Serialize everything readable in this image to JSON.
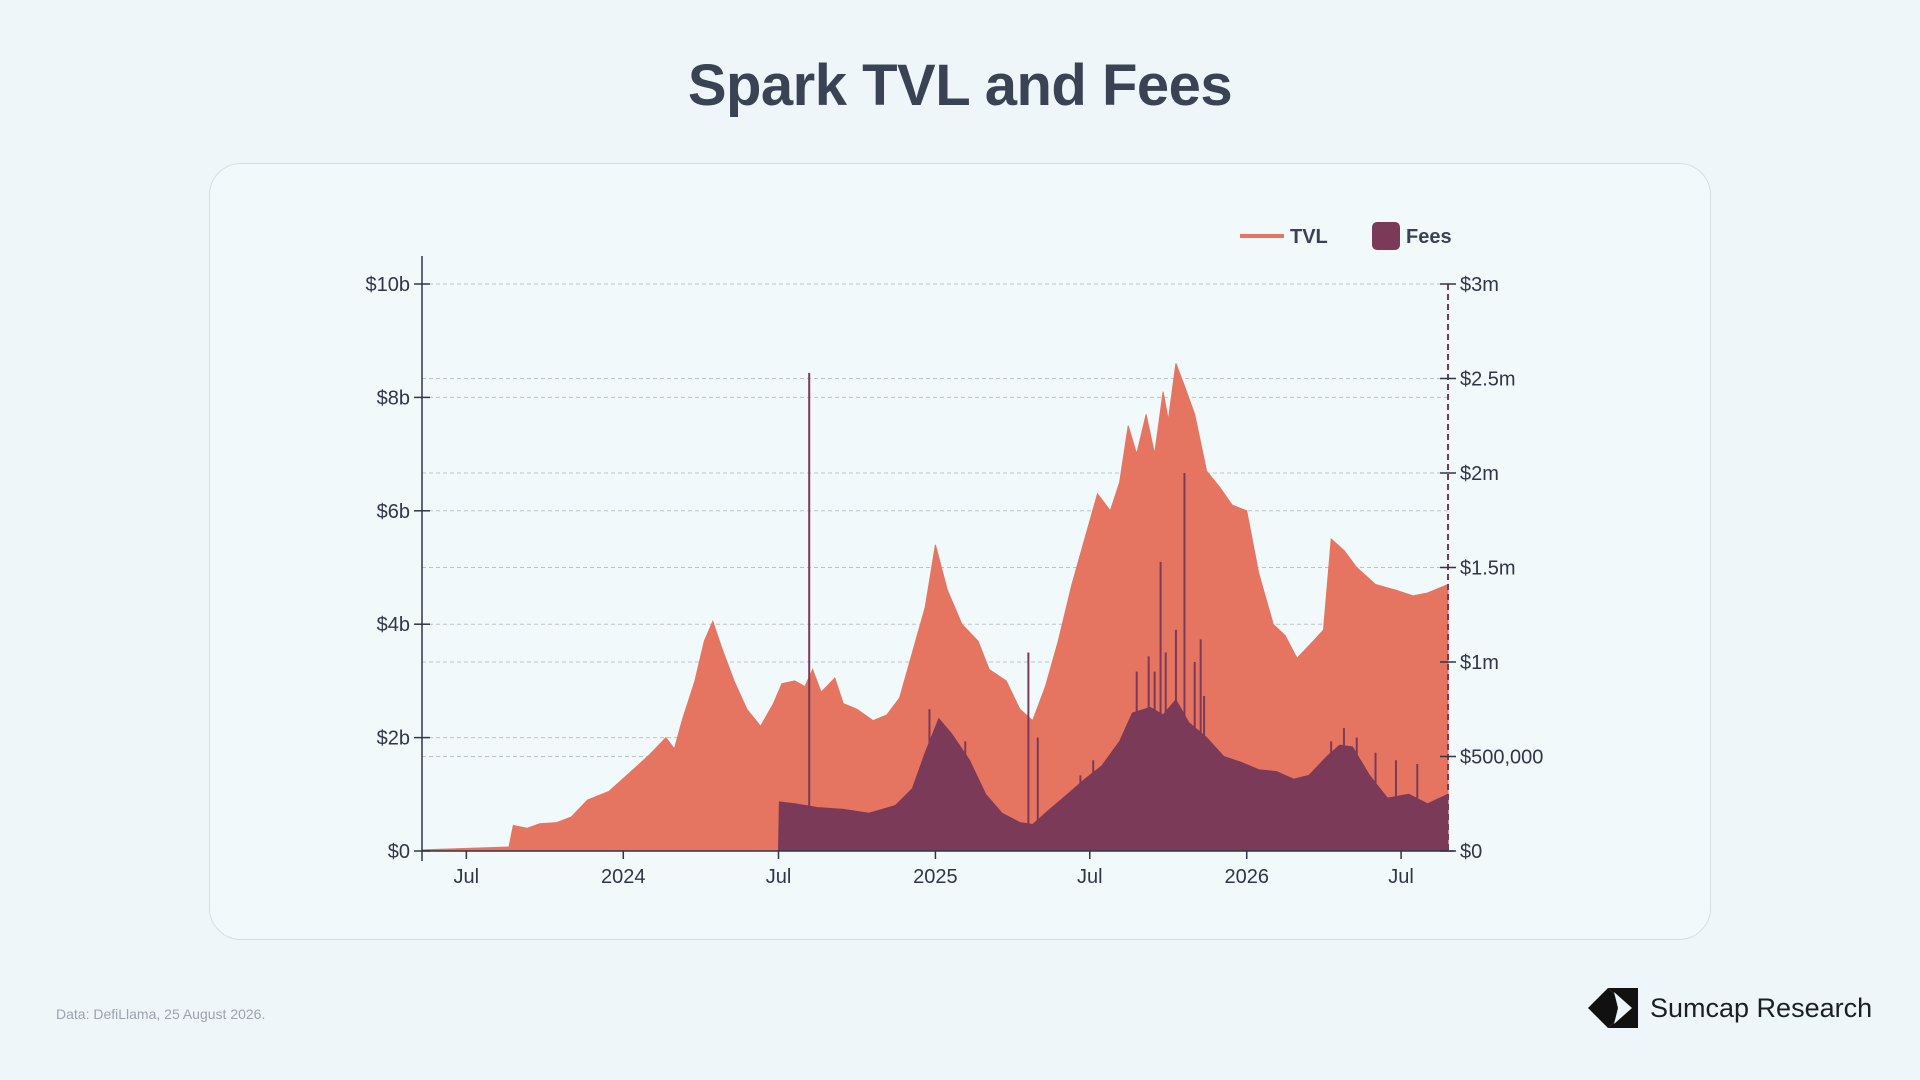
{
  "title": "Spark TVL and Fees",
  "source": "Data: DefiLlama, 25 August 2026.",
  "brand": {
    "name": "Sumcap Research",
    "icon": "sumcap-logo-icon"
  },
  "colors": {
    "tvl": "#e57561",
    "fees": "#7b3a58",
    "axis": "#2f3745",
    "grid": "#b8c5cc"
  },
  "chart_data": {
    "type": "area",
    "title": "Spark TVL and Fees",
    "legend": {
      "placement": "top-right",
      "items": [
        "TVL",
        "Fees"
      ]
    },
    "grid": true,
    "x_ticks": [
      "Jul",
      "2024",
      "Jul",
      "2025",
      "Jul",
      "2026",
      "Jul"
    ],
    "x_tick_dates": [
      "2023-07-01",
      "2024-01-01",
      "2024-07-01",
      "2025-01-01",
      "2025-07-01",
      "2026-01-01",
      "2026-07-01"
    ],
    "xlim": [
      "2023-05-10",
      "2026-08-25"
    ],
    "y_left": {
      "ticks": [
        "$0",
        "$2b",
        "$4b",
        "$6b",
        "$8b",
        "$10b"
      ],
      "values": [
        0,
        2,
        4,
        6,
        8,
        10
      ],
      "ylim": [
        0,
        10
      ],
      "unit": "billion USD"
    },
    "y_right": {
      "ticks": [
        "$0",
        "$500,000",
        "$1m",
        "$1.5m",
        "$2m",
        "$2.5m",
        "$3m"
      ],
      "values": [
        0,
        0.5,
        1,
        1.5,
        2,
        2.5,
        3
      ],
      "ylim": [
        0,
        3
      ],
      "unit": "million USD"
    },
    "series": [
      {
        "name": "TVL",
        "axis": "left",
        "style": "area",
        "points": [
          [
            "2023-05-10",
            0.02
          ],
          [
            "2023-08-20",
            0.07
          ],
          [
            "2023-08-25",
            0.45
          ],
          [
            "2023-09-10",
            0.4
          ],
          [
            "2023-09-25",
            0.48
          ],
          [
            "2023-10-15",
            0.5
          ],
          [
            "2023-11-01",
            0.6
          ],
          [
            "2023-11-20",
            0.9
          ],
          [
            "2023-12-15",
            1.05
          ],
          [
            "2024-01-10",
            1.4
          ],
          [
            "2024-02-01",
            1.7
          ],
          [
            "2024-02-20",
            2.0
          ],
          [
            "2024-03-01",
            1.8
          ],
          [
            "2024-03-10",
            2.3
          ],
          [
            "2024-03-25",
            3.0
          ],
          [
            "2024-04-05",
            3.7
          ],
          [
            "2024-04-15",
            4.05
          ],
          [
            "2024-04-25",
            3.6
          ],
          [
            "2024-05-10",
            3.0
          ],
          [
            "2024-05-25",
            2.5
          ],
          [
            "2024-06-10",
            2.2
          ],
          [
            "2024-06-25",
            2.6
          ],
          [
            "2024-07-05",
            2.95
          ],
          [
            "2024-07-20",
            3.0
          ],
          [
            "2024-08-01",
            2.9
          ],
          [
            "2024-08-10",
            3.2
          ],
          [
            "2024-08-20",
            2.8
          ],
          [
            "2024-09-05",
            3.05
          ],
          [
            "2024-09-15",
            2.6
          ],
          [
            "2024-10-01",
            2.5
          ],
          [
            "2024-10-20",
            2.3
          ],
          [
            "2024-11-05",
            2.4
          ],
          [
            "2024-11-20",
            2.7
          ],
          [
            "2024-12-05",
            3.5
          ],
          [
            "2024-12-20",
            4.3
          ],
          [
            "2025-01-01",
            5.4
          ],
          [
            "2025-01-15",
            4.6
          ],
          [
            "2025-02-01",
            4.0
          ],
          [
            "2025-02-20",
            3.7
          ],
          [
            "2025-03-05",
            3.2
          ],
          [
            "2025-03-25",
            3.0
          ],
          [
            "2025-04-10",
            2.5
          ],
          [
            "2025-04-25",
            2.3
          ],
          [
            "2025-05-10",
            2.9
          ],
          [
            "2025-05-25",
            3.7
          ],
          [
            "2025-06-10",
            4.7
          ],
          [
            "2025-06-25",
            5.5
          ],
          [
            "2025-07-10",
            6.3
          ],
          [
            "2025-07-25",
            6.0
          ],
          [
            "2025-08-05",
            6.5
          ],
          [
            "2025-08-15",
            7.5
          ],
          [
            "2025-08-25",
            7.0
          ],
          [
            "2025-09-05",
            7.7
          ],
          [
            "2025-09-15",
            7.0
          ],
          [
            "2025-09-25",
            8.1
          ],
          [
            "2025-10-01",
            7.6
          ],
          [
            "2025-10-10",
            8.6
          ],
          [
            "2025-10-20",
            8.2
          ],
          [
            "2025-11-01",
            7.7
          ],
          [
            "2025-11-15",
            6.7
          ],
          [
            "2025-12-01",
            6.4
          ],
          [
            "2025-12-15",
            6.1
          ],
          [
            "2026-01-01",
            6.0
          ],
          [
            "2026-01-15",
            4.9
          ],
          [
            "2026-02-01",
            4.0
          ],
          [
            "2026-02-15",
            3.8
          ],
          [
            "2026-03-01",
            3.4
          ],
          [
            "2026-03-20",
            3.7
          ],
          [
            "2026-04-01",
            3.9
          ],
          [
            "2026-04-10",
            5.5
          ],
          [
            "2026-04-25",
            5.3
          ],
          [
            "2026-05-10",
            5.0
          ],
          [
            "2026-06-01",
            4.7
          ],
          [
            "2026-06-25",
            4.6
          ],
          [
            "2026-07-15",
            4.5
          ],
          [
            "2026-08-01",
            4.55
          ],
          [
            "2026-08-25",
            4.7
          ]
        ]
      },
      {
        "name": "Fees",
        "axis": "right",
        "style": "area",
        "points": [
          [
            "2024-07-01",
            0.0
          ],
          [
            "2024-07-02",
            0.26
          ],
          [
            "2024-07-20",
            0.25
          ],
          [
            "2024-08-15",
            0.23
          ],
          [
            "2024-09-15",
            0.22
          ],
          [
            "2024-10-15",
            0.2
          ],
          [
            "2024-11-15",
            0.24
          ],
          [
            "2024-12-05",
            0.33
          ],
          [
            "2024-12-20",
            0.52
          ],
          [
            "2025-01-05",
            0.7
          ],
          [
            "2025-01-20",
            0.62
          ],
          [
            "2025-02-10",
            0.48
          ],
          [
            "2025-03-01",
            0.3
          ],
          [
            "2025-03-20",
            0.2
          ],
          [
            "2025-04-10",
            0.15
          ],
          [
            "2025-04-25",
            0.14
          ],
          [
            "2025-05-15",
            0.22
          ],
          [
            "2025-06-05",
            0.3
          ],
          [
            "2025-06-25",
            0.38
          ],
          [
            "2025-07-15",
            0.45
          ],
          [
            "2025-08-05",
            0.58
          ],
          [
            "2025-08-20",
            0.73
          ],
          [
            "2025-09-10",
            0.76
          ],
          [
            "2025-09-25",
            0.72
          ],
          [
            "2025-10-10",
            0.8
          ],
          [
            "2025-10-25",
            0.68
          ],
          [
            "2025-11-15",
            0.6
          ],
          [
            "2025-12-05",
            0.5
          ],
          [
            "2025-12-25",
            0.47
          ],
          [
            "2026-01-15",
            0.43
          ],
          [
            "2026-02-05",
            0.42
          ],
          [
            "2026-02-25",
            0.38
          ],
          [
            "2026-03-15",
            0.4
          ],
          [
            "2026-04-05",
            0.5
          ],
          [
            "2026-04-20",
            0.56
          ],
          [
            "2026-05-05",
            0.55
          ],
          [
            "2026-05-25",
            0.4
          ],
          [
            "2026-06-15",
            0.28
          ],
          [
            "2026-07-10",
            0.3
          ],
          [
            "2026-08-01",
            0.25
          ],
          [
            "2026-08-25",
            0.3
          ]
        ],
        "spikes": [
          [
            "2024-08-06",
            2.53
          ],
          [
            "2024-12-25",
            0.75
          ],
          [
            "2025-02-05",
            0.58
          ],
          [
            "2025-04-20",
            1.05
          ],
          [
            "2025-05-01",
            0.6
          ],
          [
            "2025-06-20",
            0.4
          ],
          [
            "2025-07-05",
            0.48
          ],
          [
            "2025-08-25",
            0.95
          ],
          [
            "2025-09-08",
            1.03
          ],
          [
            "2025-09-15",
            0.95
          ],
          [
            "2025-09-22",
            1.53
          ],
          [
            "2025-09-28",
            1.05
          ],
          [
            "2025-10-10",
            1.17
          ],
          [
            "2025-10-20",
            2.0
          ],
          [
            "2025-11-01",
            1.0
          ],
          [
            "2025-11-08",
            1.12
          ],
          [
            "2025-11-12",
            0.82
          ],
          [
            "2026-04-10",
            0.58
          ],
          [
            "2026-04-25",
            0.65
          ],
          [
            "2026-05-10",
            0.6
          ],
          [
            "2026-06-01",
            0.52
          ],
          [
            "2026-06-25",
            0.48
          ],
          [
            "2026-07-20",
            0.46
          ]
        ]
      }
    ]
  }
}
